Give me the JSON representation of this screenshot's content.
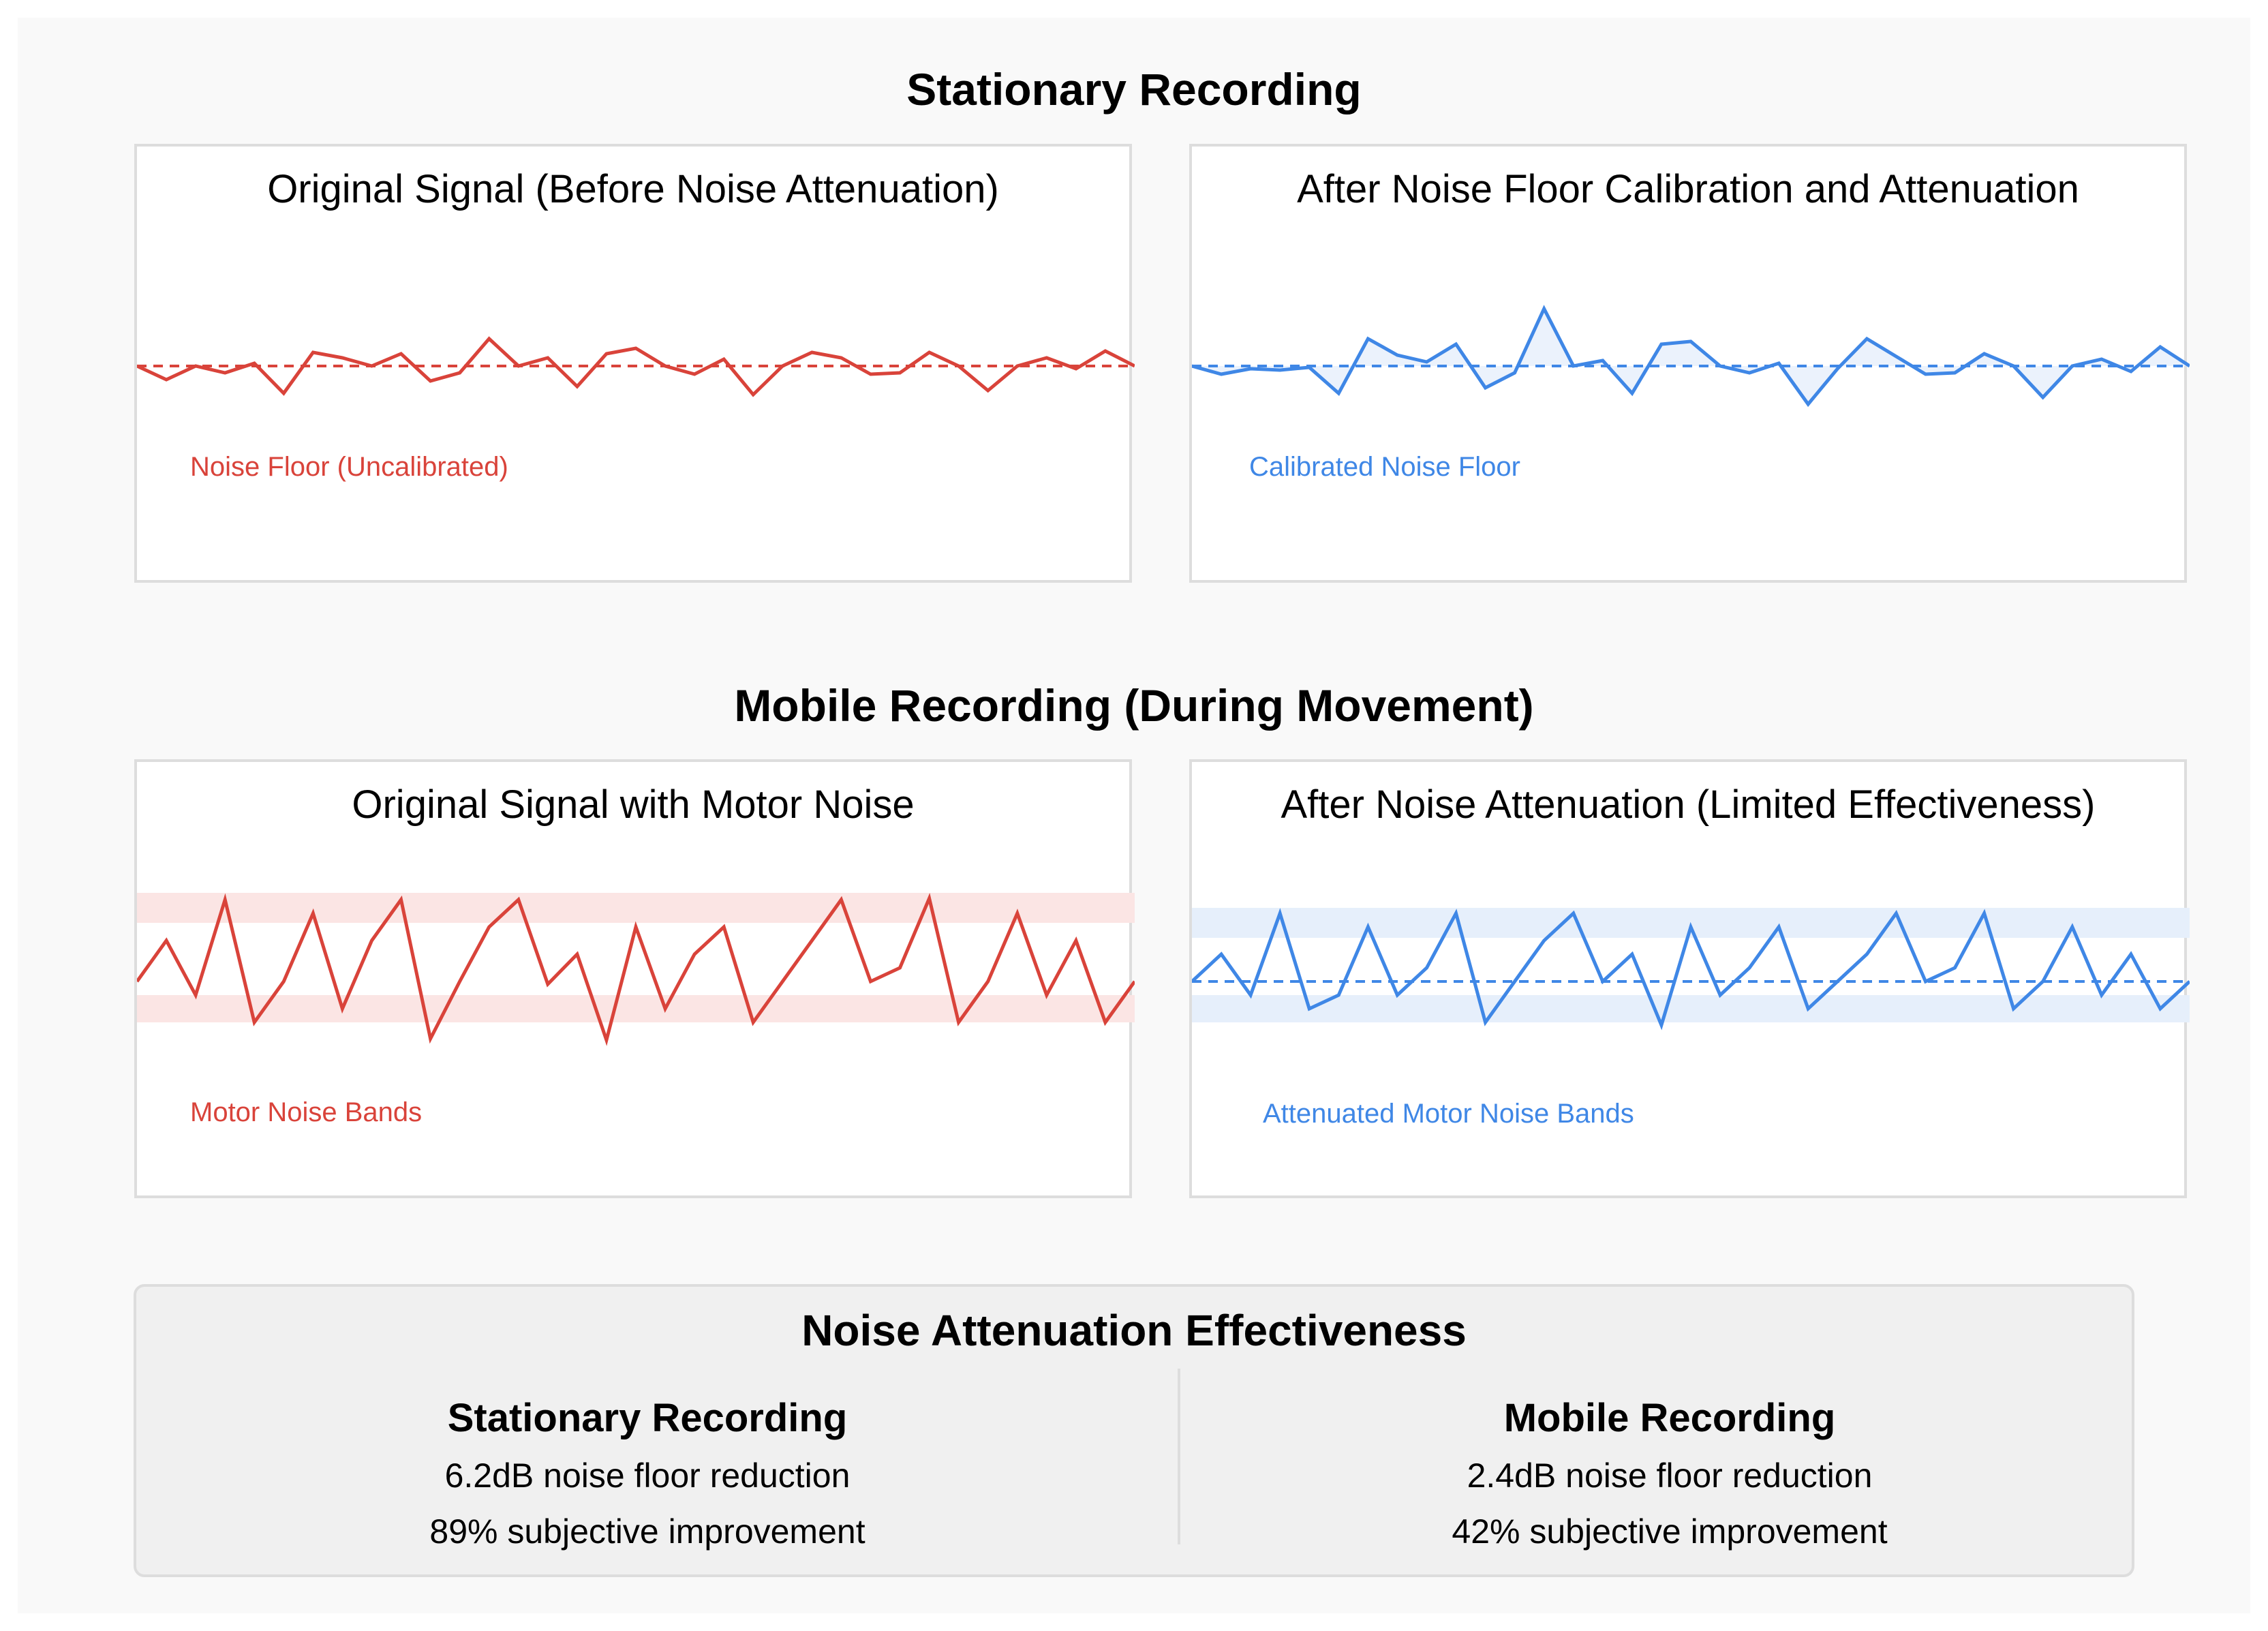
{
  "sections": {
    "stationary_title": "Stationary Recording",
    "mobile_title": "Mobile Recording (During Movement)"
  },
  "panels": {
    "stationary_original": {
      "title": "Original Signal (Before Noise Attenuation)",
      "label": "Noise Floor (Uncalibrated)"
    },
    "stationary_after": {
      "title": "After Noise Floor Calibration and Attenuation",
      "label": "Calibrated Noise Floor"
    },
    "mobile_original": {
      "title": "Original Signal with Motor Noise",
      "label": "Motor Noise Bands"
    },
    "mobile_after": {
      "title": "After Noise Attenuation (Limited Effectiveness)",
      "label": "Attenuated Motor Noise Bands"
    }
  },
  "summary": {
    "title": "Noise Attenuation Effectiveness",
    "stationary": {
      "heading": "Stationary Recording",
      "reduction": "6.2dB noise floor reduction",
      "improvement": "89% subjective improvement"
    },
    "mobile": {
      "heading": "Mobile Recording",
      "reduction": "2.4dB noise floor reduction",
      "improvement": "42% subjective improvement"
    }
  },
  "colors": {
    "original_signal": "#d9433a",
    "attenuated_signal": "#3f87e6",
    "motor_band_original": "#fbe5e4",
    "motor_band_attenuated": "#e6effb",
    "attenuation_fill": "#e9f1fc"
  },
  "waveforms": {
    "stationary_original": [
      0,
      -20,
      0,
      -10,
      4,
      -40,
      20,
      12,
      0,
      18,
      -22,
      -10,
      40,
      0,
      12,
      -30,
      18,
      26,
      0,
      -12,
      10,
      -42,
      0,
      20,
      12,
      -12,
      -10,
      20,
      0,
      -36,
      0,
      12,
      -4,
      22,
      0
    ],
    "stationary_after": [
      0,
      -12,
      -4,
      -6,
      -2,
      -40,
      40,
      16,
      6,
      32,
      -32,
      -10,
      84,
      0,
      8,
      -40,
      32,
      36,
      0,
      -10,
      4,
      -56,
      -4,
      40,
      14,
      -12,
      -10,
      18,
      0,
      -46,
      0,
      10,
      -8,
      28,
      0
    ],
    "mobile_original": [
      0,
      60,
      -20,
      120,
      -60,
      0,
      100,
      -40,
      60,
      120,
      -84,
      0,
      80,
      120,
      -4,
      40,
      -86,
      80,
      -40,
      40,
      80,
      -60,
      0,
      60,
      120,
      0,
      20,
      122,
      -60,
      0,
      100,
      -20,
      60,
      -60,
      0
    ],
    "mobile_after": [
      0,
      40,
      -20,
      100,
      -40,
      -20,
      80,
      -20,
      20,
      100,
      -60,
      0,
      60,
      100,
      0,
      40,
      -64,
      80,
      -20,
      20,
      80,
      -40,
      0,
      40,
      100,
      0,
      20,
      100,
      -40,
      0,
      80,
      -20,
      40,
      -40,
      0
    ]
  }
}
